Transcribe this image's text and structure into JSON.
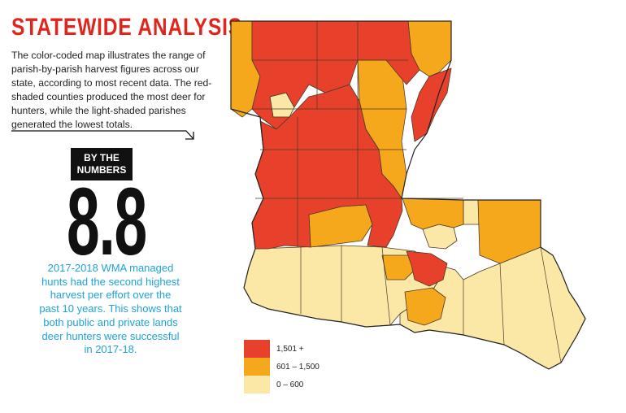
{
  "header": {
    "title": "STATEWIDE ANALYSIS",
    "intro": "The color-coded map illustrates the range of parish-by-parish harvest figures across our state, according to most recent data. The red-shaded counties produced the most deer for hunters, while the light-shaded parishes generated the lowest totals."
  },
  "badge": {
    "line1": "BY THE",
    "line2": "NUMBERS"
  },
  "stat": {
    "number": "8.8",
    "description": "2017-2018 WMA managed hunts had the second highest harvest per effort over the past 10 years. This shows that both public and private lands deer hunters were successful in 2017-18."
  },
  "legend": [
    {
      "label": "1,501 +",
      "color": "#e8412b"
    },
    {
      "label": "601 – 1,500",
      "color": "#f5a81c"
    },
    {
      "label": "0 – 600",
      "color": "#fbe7a6"
    }
  ],
  "colors": {
    "high": "#e8412b",
    "mid": "#f5a81c",
    "low": "#fbe7a6",
    "title": "#e0261c",
    "accent": "#1fa3d8"
  }
}
